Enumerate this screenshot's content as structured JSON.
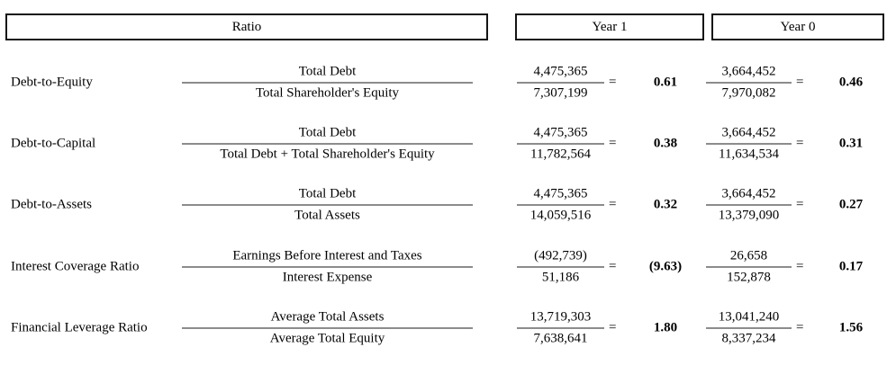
{
  "header": {
    "ratio": "Ratio",
    "year1": "Year 1",
    "year0": "Year 0"
  },
  "symbols": {
    "equals": "="
  },
  "rows": [
    {
      "name": "Debt-to-Equity",
      "formula": {
        "numerator": "Total Debt",
        "denominator": "Total Shareholder's Equity"
      },
      "year1": {
        "numerator": "4,475,365",
        "denominator": "7,307,199",
        "result": "0.61"
      },
      "year0": {
        "numerator": "3,664,452",
        "denominator": "7,970,082",
        "result": "0.46"
      }
    },
    {
      "name": "Debt-to-Capital",
      "formula": {
        "numerator": "Total Debt",
        "denominator": "Total Debt + Total Shareholder's Equity"
      },
      "year1": {
        "numerator": "4,475,365",
        "denominator": "11,782,564",
        "result": "0.38"
      },
      "year0": {
        "numerator": "3,664,452",
        "denominator": "11,634,534",
        "result": "0.31"
      }
    },
    {
      "name": "Debt-to-Assets",
      "formula": {
        "numerator": "Total Debt",
        "denominator": "Total Assets"
      },
      "year1": {
        "numerator": "4,475,365",
        "denominator": "14,059,516",
        "result": "0.32"
      },
      "year0": {
        "numerator": "3,664,452",
        "denominator": "13,379,090",
        "result": "0.27"
      }
    },
    {
      "name": "Interest Coverage Ratio",
      "formula": {
        "numerator": "Earnings Before Interest and Taxes",
        "denominator": "Interest Expense"
      },
      "year1": {
        "numerator": "(492,739)",
        "denominator": "51,186",
        "result": "(9.63)"
      },
      "year0": {
        "numerator": "26,658",
        "denominator": "152,878",
        "result": "0.17"
      }
    },
    {
      "name": "Financial Leverage Ratio",
      "formula": {
        "numerator": "Average Total Assets",
        "denominator": "Average Total Equity"
      },
      "year1": {
        "numerator": "13,719,303",
        "denominator": "7,638,641",
        "result": "1.80"
      },
      "year0": {
        "numerator": "13,041,240",
        "denominator": "8,337,234",
        "result": "1.56"
      }
    }
  ]
}
